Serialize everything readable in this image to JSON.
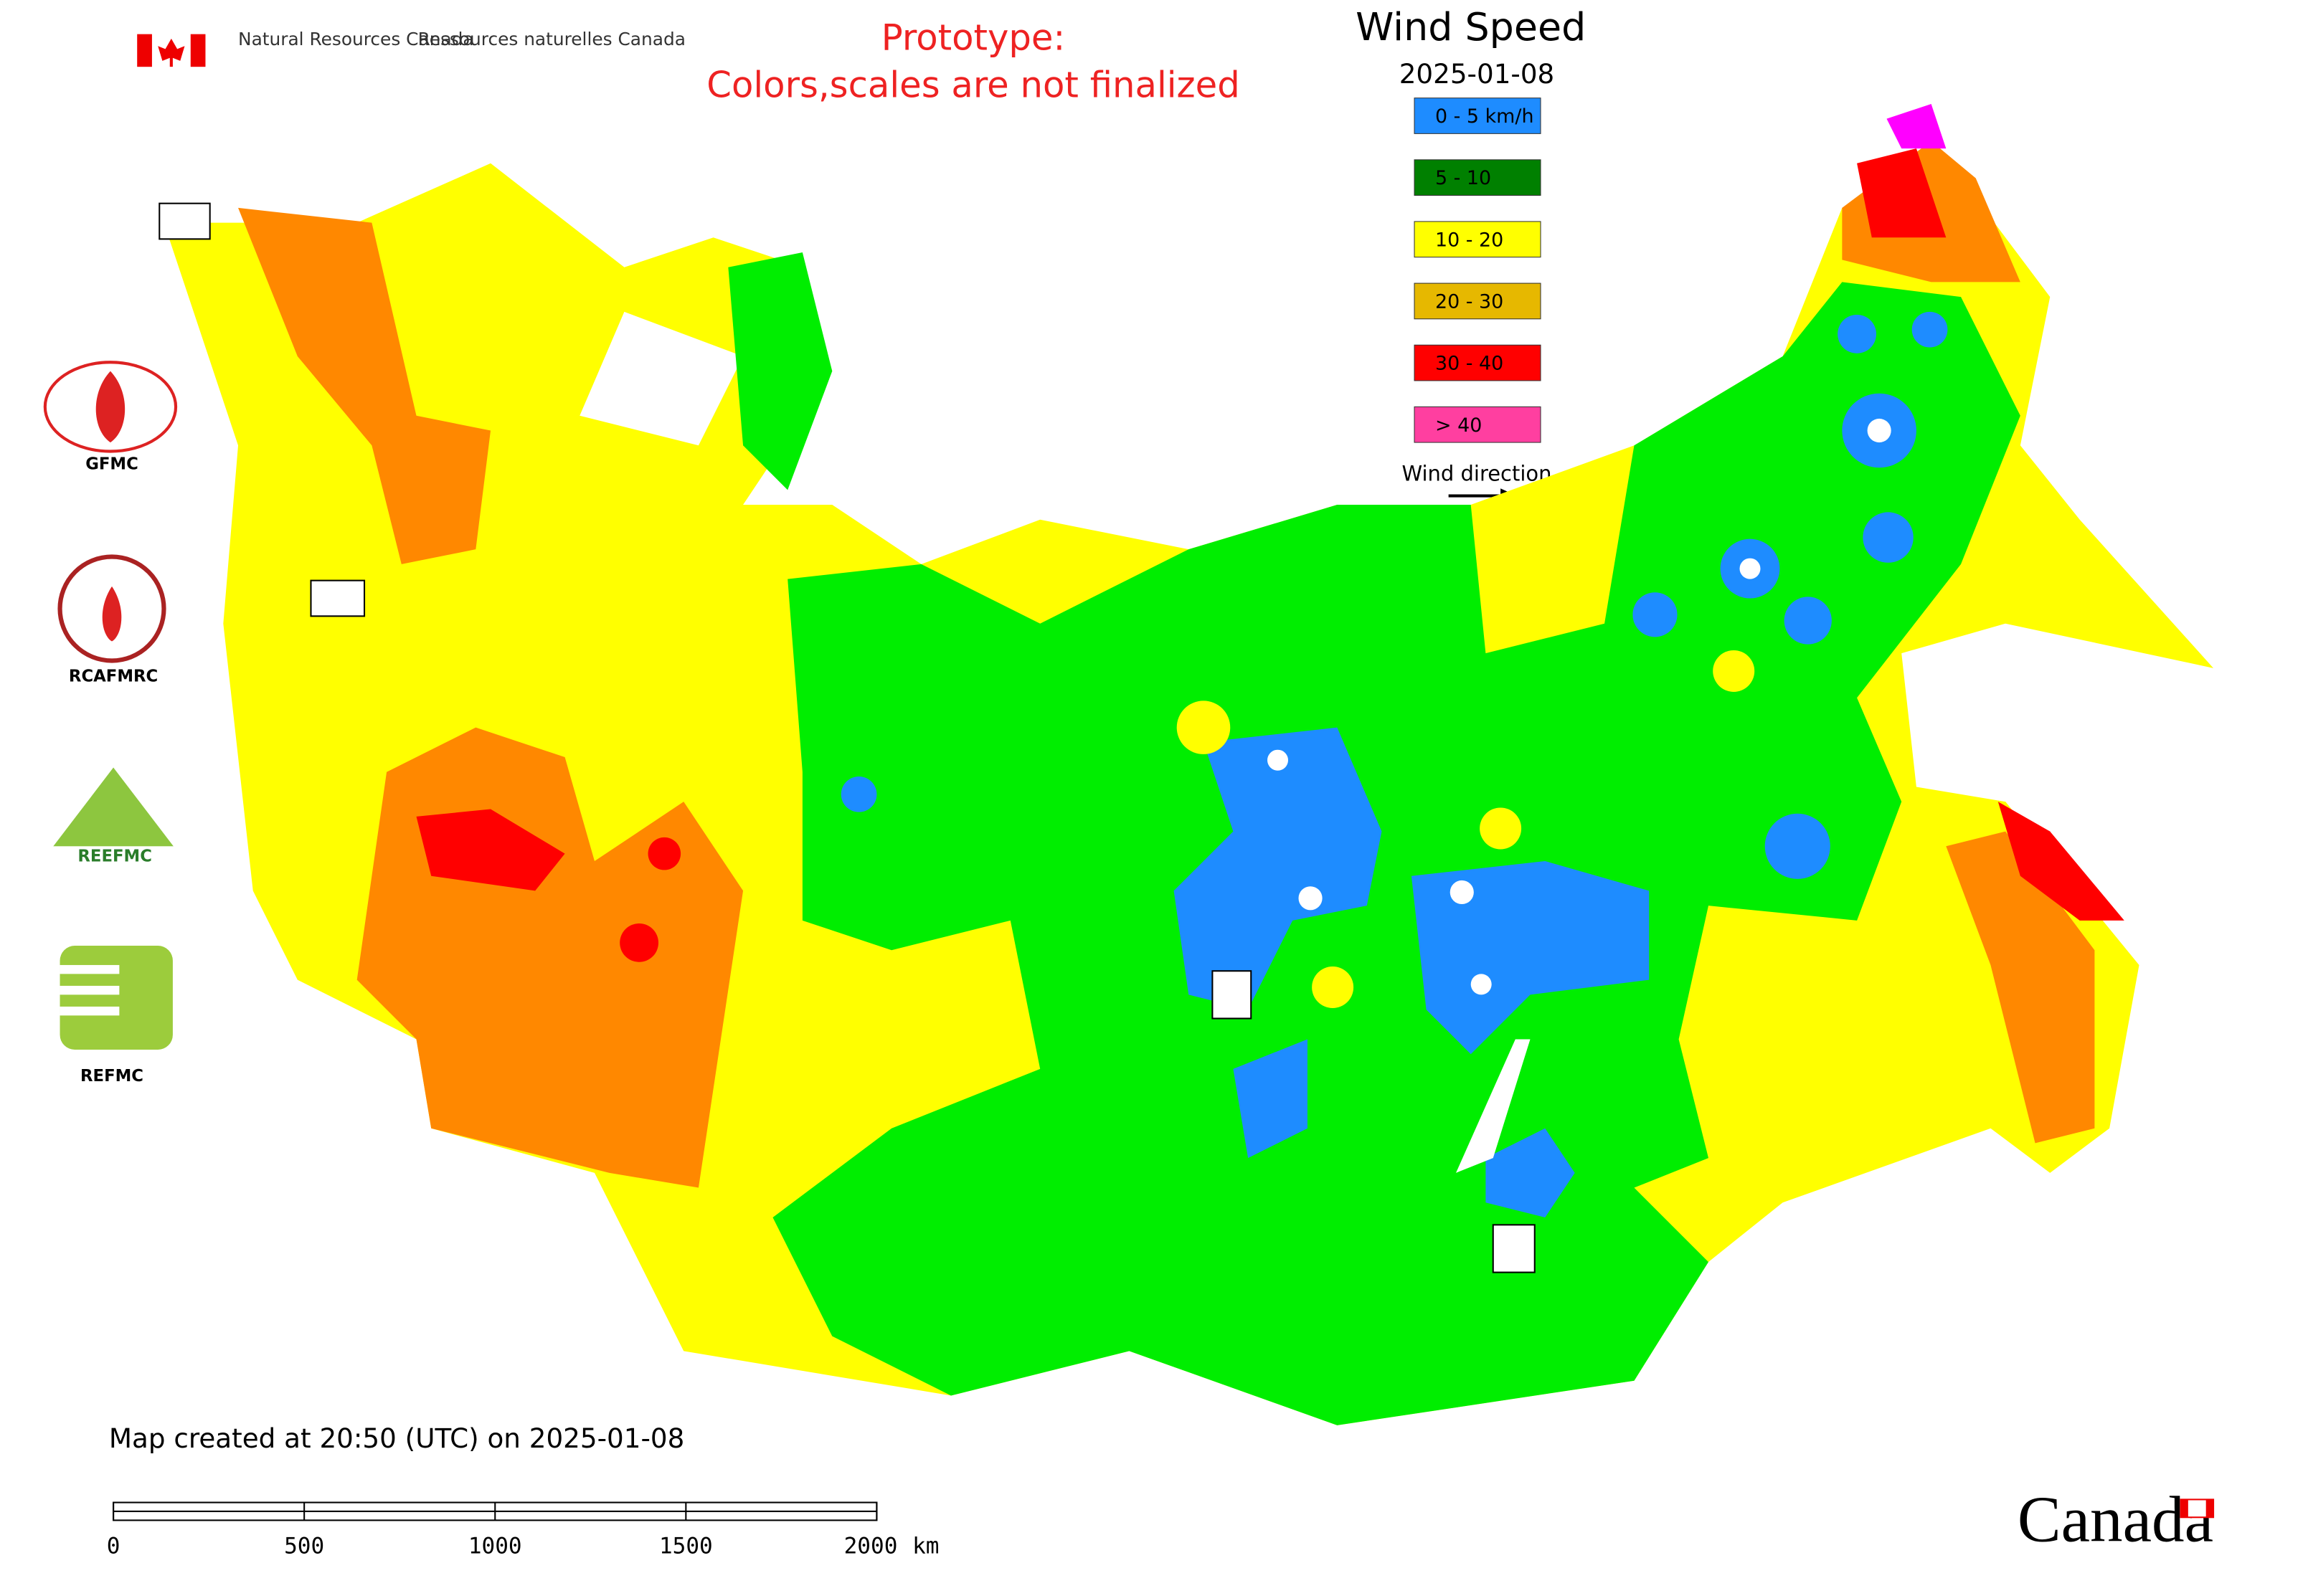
{
  "header": {
    "agency_en": "Natural Resources Canada",
    "agency_fr": "Ressources naturelles Canada"
  },
  "notice": {
    "line1": "Prototype:",
    "line2": "Colors,scales are not finalized"
  },
  "title": "Wind Speed",
  "date": "2025-01-08",
  "legend": {
    "items": [
      {
        "label": "0 - 5 km/h",
        "color": "#1e8cff"
      },
      {
        "label": "5 - 10",
        "color": "#008000"
      },
      {
        "label": "10 - 20",
        "color": "#ffff00"
      },
      {
        "label": "20 - 30",
        "color": "#e6b800"
      },
      {
        "label": "30 - 40",
        "color": "#ff0000"
      },
      {
        "label": "> 40",
        "color": "#ff3fa0"
      }
    ],
    "wind_direction": "Wind direction"
  },
  "logos": {
    "gfmc": "GFMC",
    "rcafmrc": "RCAFMRC",
    "reefmc": "REEFMC",
    "refmc": "REFMC"
  },
  "footer": {
    "created": "Map created at 20:50 (UTC) on 2025-01-08",
    "wordmark": "Canada"
  },
  "scale_bar": {
    "ticks": [
      0,
      500,
      1000,
      1500,
      2000
    ],
    "unit": "km"
  }
}
